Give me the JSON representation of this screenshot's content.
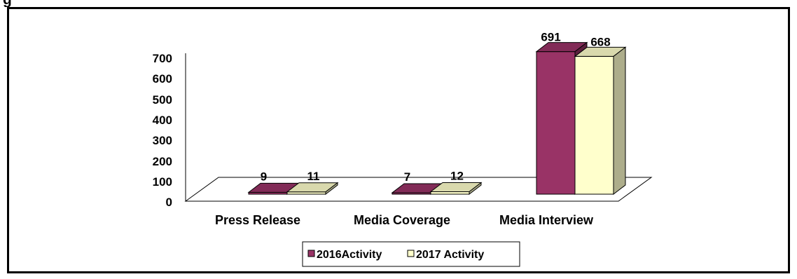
{
  "chart_data": {
    "type": "bar",
    "title": "",
    "xlabel": "",
    "ylabel": "",
    "categories": [
      "Press Release",
      "Media Coverage",
      "Media Interview"
    ],
    "series": [
      {
        "name": "2016Activity",
        "values": [
          9,
          7,
          691
        ],
        "color": "#993366"
      },
      {
        "name": "2017 Activity",
        "values": [
          11,
          12,
          668
        ],
        "color": "#FFFFCC"
      }
    ],
    "ylim": [
      0,
      700
    ],
    "yticks": [
      "0",
      "100",
      "200",
      "300",
      "400",
      "500",
      "600",
      "700"
    ],
    "legend_position": "bottom",
    "grid": false,
    "style": "3d-clustered-column"
  }
}
